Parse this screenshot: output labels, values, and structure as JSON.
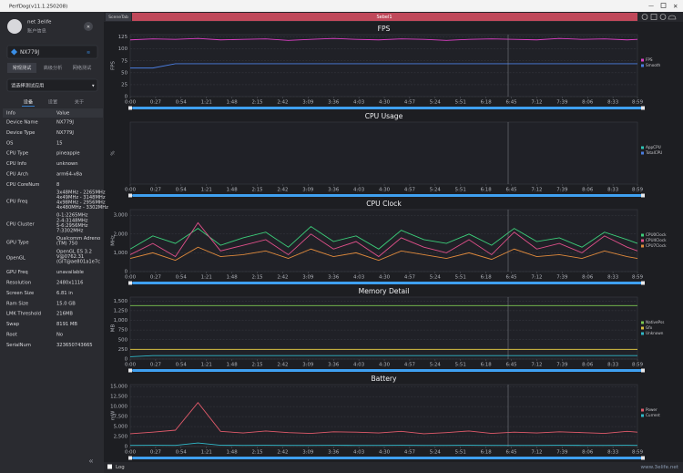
{
  "app": {
    "title": "PerfDog(v11.1.250208)"
  },
  "sidebar": {
    "user": "net 3elife",
    "account": "账户信息",
    "device": "NX779J",
    "tabs": [
      "常规测试",
      "高级分析",
      "网络测试"
    ],
    "app_select": "请选择测试应用",
    "sub_tabs": [
      "设备",
      "设置",
      "关于"
    ],
    "info_header": [
      "Info",
      "Value"
    ],
    "info_rows": [
      {
        "label": "Device Name",
        "value": [
          "NX779J"
        ]
      },
      {
        "label": "Device Type",
        "value": [
          "NX779J"
        ]
      },
      {
        "label": "OS",
        "value": [
          "15"
        ]
      },
      {
        "label": "CPU Type",
        "value": [
          "pineapple"
        ]
      },
      {
        "label": "CPU Info",
        "value": [
          "unknown"
        ]
      },
      {
        "label": "CPU Arch",
        "value": [
          "arm64-v8a"
        ]
      },
      {
        "label": "CPU CoreNum",
        "value": [
          "8"
        ]
      },
      {
        "label": "CPU Freq",
        "value": [
          "3x48MHz - 2265MHz",
          "4x49MHz - 3148MHz",
          "4x98MHz - 2956MHz",
          "4x480MHz - 3302MHz"
        ]
      },
      {
        "label": "CPU Cluster",
        "value": [
          "0-1:2265MHz",
          "2-4:3148MHz",
          "5-6:2956MHz",
          "7:3302MHz"
        ]
      },
      {
        "label": "GPU Type",
        "value": [
          "Qualcomm Adreno",
          "(TM) 750"
        ]
      },
      {
        "label": "OpenGL",
        "value": [
          "OpenGL ES 3.2",
          "V@0762.31",
          "(GIT@ae801a1e7c"
        ]
      },
      {
        "label": "GPU Freq",
        "value": [
          "unavailable"
        ]
      },
      {
        "label": "Resolution",
        "value": [
          "2480x1116"
        ]
      },
      {
        "label": "Screen Size",
        "value": [
          "6.81 in"
        ]
      },
      {
        "label": "Ram Size",
        "value": [
          "15.0 GB"
        ]
      },
      {
        "label": "LMK Threshold",
        "value": [
          "216MB"
        ]
      },
      {
        "label": "Swap",
        "value": [
          "8191 MB"
        ]
      },
      {
        "label": "Root",
        "value": [
          "No"
        ]
      },
      {
        "label": "SerialNum",
        "value": [
          "323650743665"
        ]
      }
    ]
  },
  "toolbar": {
    "scene_tab": "SceneTab",
    "label": "Sebel1"
  },
  "charts": [
    {
      "type": "line",
      "title": "FPS",
      "ylabel": "FPS",
      "grid": true,
      "xlim": [
        0,
        539
      ],
      "ylim": [
        0,
        130
      ],
      "xticks": [
        {
          "value": 0,
          "label": "0:00"
        },
        {
          "value": 27,
          "label": "0:27"
        },
        {
          "value": 54,
          "label": "0:54"
        },
        {
          "value": 81,
          "label": "1:21"
        },
        {
          "value": 108,
          "label": "1:48"
        },
        {
          "value": 135,
          "label": "2:15"
        },
        {
          "value": 162,
          "label": "2:42"
        },
        {
          "value": 189,
          "label": "3:09"
        },
        {
          "value": 216,
          "label": "3:36"
        },
        {
          "value": 243,
          "label": "4:03"
        },
        {
          "value": 270,
          "label": "4:30"
        },
        {
          "value": 297,
          "label": "4:57"
        },
        {
          "value": 324,
          "label": "5:24"
        },
        {
          "value": 351,
          "label": "5:51"
        },
        {
          "value": 378,
          "label": "6:18"
        },
        {
          "value": 405,
          "label": "6:45"
        },
        {
          "value": 432,
          "label": "7:12"
        },
        {
          "value": 459,
          "label": "7:39"
        },
        {
          "value": 486,
          "label": "8:06"
        },
        {
          "value": 513,
          "label": "8:33"
        },
        {
          "value": 539,
          "label": "8:59"
        }
      ],
      "yticks": [
        0,
        25,
        50,
        75,
        100,
        125
      ],
      "x": [
        0,
        24,
        48,
        72,
        96,
        120,
        144,
        168,
        192,
        216,
        240,
        264,
        288,
        312,
        336,
        360,
        384,
        408,
        432,
        456,
        480,
        504,
        528,
        539
      ],
      "series": [
        {
          "name": "FPS",
          "color": "#e040c8",
          "values": [
            119,
            121,
            120,
            122,
            119,
            120,
            121,
            118,
            120,
            122,
            120,
            119,
            121,
            120,
            118,
            120,
            121,
            120,
            119,
            122,
            120,
            121,
            119,
            120
          ]
        },
        {
          "name": "Smooth",
          "color": "#4a7de0",
          "values": [
            60,
            60,
            69,
            69,
            69,
            69,
            69,
            69,
            69,
            69,
            69,
            69,
            69,
            69,
            69,
            69,
            69,
            69,
            69,
            69,
            69,
            69,
            69,
            69
          ]
        }
      ]
    },
    {
      "type": "line",
      "title": "CPU Usage",
      "ylabel": "%",
      "grid": false,
      "xlim": [
        0,
        539
      ],
      "xticks": [
        {
          "value": 0,
          "label": "0:00"
        },
        {
          "value": 27,
          "label": "0:27"
        },
        {
          "value": 54,
          "label": "0:54"
        },
        {
          "value": 81,
          "label": "1:21"
        },
        {
          "value": 108,
          "label": "1:48"
        },
        {
          "value": 135,
          "label": "2:15"
        },
        {
          "value": 162,
          "label": "2:42"
        },
        {
          "value": 189,
          "label": "3:09"
        },
        {
          "value": 216,
          "label": "3:36"
        },
        {
          "value": 243,
          "label": "4:03"
        },
        {
          "value": 270,
          "label": "4:30"
        },
        {
          "value": 297,
          "label": "4:57"
        },
        {
          "value": 324,
          "label": "5:24"
        },
        {
          "value": 351,
          "label": "5:51"
        },
        {
          "value": 378,
          "label": "6:18"
        },
        {
          "value": 405,
          "label": "6:45"
        },
        {
          "value": 432,
          "label": "7:12"
        },
        {
          "value": 459,
          "label": "7:39"
        },
        {
          "value": 486,
          "label": "8:06"
        },
        {
          "value": 513,
          "label": "8:33"
        },
        {
          "value": 539,
          "label": "8:59"
        }
      ],
      "series": [
        {
          "name": "AppCPU",
          "color": "#2ec4b6",
          "values": []
        },
        {
          "name": "TotalCPU",
          "color": "#4a7de0",
          "values": []
        }
      ]
    },
    {
      "type": "line",
      "title": "CPU Clock",
      "ylabel": "MHz",
      "grid": true,
      "xlim": [
        0,
        539
      ],
      "ylim": [
        0,
        3300
      ],
      "xticks": [
        {
          "value": 0,
          "label": "0:00"
        },
        {
          "value": 27,
          "label": "0:27"
        },
        {
          "value": 54,
          "label": "0:54"
        },
        {
          "value": 81,
          "label": "1:21"
        },
        {
          "value": 108,
          "label": "1:48"
        },
        {
          "value": 135,
          "label": "2:15"
        },
        {
          "value": 162,
          "label": "2:42"
        },
        {
          "value": 189,
          "label": "3:09"
        },
        {
          "value": 216,
          "label": "3:36"
        },
        {
          "value": 243,
          "label": "4:03"
        },
        {
          "value": 270,
          "label": "4:30"
        },
        {
          "value": 297,
          "label": "4:57"
        },
        {
          "value": 324,
          "label": "5:24"
        },
        {
          "value": 351,
          "label": "5:51"
        },
        {
          "value": 378,
          "label": "6:18"
        },
        {
          "value": 405,
          "label": "6:45"
        },
        {
          "value": 432,
          "label": "7:12"
        },
        {
          "value": 459,
          "label": "7:39"
        },
        {
          "value": 486,
          "label": "8:06"
        },
        {
          "value": 513,
          "label": "8:33"
        },
        {
          "value": 539,
          "label": "8:59"
        }
      ],
      "yticks": [
        0,
        {
          "value": 1000,
          "label": "1,000"
        },
        {
          "value": 2000,
          "label": "2,000"
        },
        {
          "value": 3000,
          "label": "3,000"
        }
      ],
      "x": [
        0,
        24,
        48,
        72,
        96,
        120,
        144,
        168,
        192,
        216,
        240,
        264,
        288,
        312,
        336,
        360,
        384,
        408,
        432,
        456,
        480,
        504,
        528,
        539
      ],
      "series": [
        {
          "name": "CPU0Clock",
          "color": "#3ccf7a",
          "values": [
            1200,
            1900,
            1500,
            2300,
            1400,
            1800,
            2100,
            1300,
            2400,
            1600,
            1900,
            1200,
            2200,
            1700,
            1500,
            2000,
            1400,
            2300,
            1600,
            1800,
            1300,
            2100,
            1700,
            1500
          ]
        },
        {
          "name": "CPU4Clock",
          "color": "#e0508a",
          "values": [
            900,
            1500,
            800,
            2600,
            1100,
            1400,
            1700,
            900,
            2000,
            1200,
            1600,
            800,
            1800,
            1300,
            1000,
            1700,
            900,
            2100,
            1200,
            1500,
            1000,
            1900,
            1300,
            1100
          ]
        },
        {
          "name": "CPU7Clock",
          "color": "#e08a3c",
          "values": [
            700,
            1000,
            600,
            1300,
            800,
            900,
            1100,
            700,
            1200,
            800,
            1000,
            600,
            1100,
            900,
            700,
            1000,
            650,
            1200,
            800,
            900,
            700,
            1100,
            800,
            700
          ]
        }
      ]
    },
    {
      "type": "line",
      "title": "Memory Detail",
      "ylabel": "MB",
      "grid": true,
      "xlim": [
        0,
        539
      ],
      "ylim": [
        0,
        1600
      ],
      "xticks": [
        {
          "value": 0,
          "label": "0:00"
        },
        {
          "value": 27,
          "label": "0:27"
        },
        {
          "value": 54,
          "label": "0:54"
        },
        {
          "value": 81,
          "label": "1:21"
        },
        {
          "value": 108,
          "label": "1:48"
        },
        {
          "value": 135,
          "label": "2:15"
        },
        {
          "value": 162,
          "label": "2:42"
        },
        {
          "value": 189,
          "label": "3:09"
        },
        {
          "value": 216,
          "label": "3:36"
        },
        {
          "value": 243,
          "label": "4:03"
        },
        {
          "value": 270,
          "label": "4:30"
        },
        {
          "value": 297,
          "label": "4:57"
        },
        {
          "value": 324,
          "label": "5:24"
        },
        {
          "value": 351,
          "label": "5:51"
        },
        {
          "value": 378,
          "label": "6:18"
        },
        {
          "value": 405,
          "label": "6:45"
        },
        {
          "value": 432,
          "label": "7:12"
        },
        {
          "value": 459,
          "label": "7:39"
        },
        {
          "value": 486,
          "label": "8:06"
        },
        {
          "value": 513,
          "label": "8:33"
        },
        {
          "value": 539,
          "label": "8:59"
        }
      ],
      "yticks": [
        0,
        250,
        500,
        750,
        {
          "value": 1000,
          "label": "1,000"
        },
        {
          "value": 1250,
          "label": "1,250"
        },
        {
          "value": 1500,
          "label": "1,500"
        }
      ],
      "x": [
        0,
        24,
        48,
        72,
        96,
        120,
        144,
        168,
        192,
        216,
        240,
        264,
        288,
        312,
        336,
        360,
        384,
        408,
        432,
        456,
        480,
        504,
        528,
        539
      ],
      "series": [
        {
          "name": "NativePss",
          "color": "#7cc850",
          "values": [
            1380,
            1380,
            1380,
            1380,
            1380,
            1380,
            1380,
            1380,
            1380,
            1380,
            1380,
            1380,
            1380,
            1380,
            1380,
            1380,
            1380,
            1380,
            1380,
            1380,
            1380,
            1380,
            1380,
            1380
          ]
        },
        {
          "name": "Gfx",
          "color": "#d8c040",
          "values": [
            250,
            250,
            250,
            250,
            250,
            250,
            250,
            250,
            250,
            250,
            250,
            250,
            250,
            250,
            250,
            250,
            250,
            250,
            250,
            250,
            250,
            250,
            250,
            250
          ]
        },
        {
          "name": "Unknown",
          "color": "#30b8c8",
          "values": [
            60,
            90,
            90,
            90,
            90,
            90,
            90,
            90,
            90,
            90,
            90,
            90,
            90,
            90,
            90,
            90,
            90,
            90,
            90,
            90,
            90,
            90,
            90,
            90
          ]
        }
      ]
    },
    {
      "type": "line",
      "title": "Battery",
      "ylabel": "mW",
      "grid": true,
      "xlim": [
        0,
        539
      ],
      "ylim": [
        0,
        15500
      ],
      "xticks": [
        {
          "value": 0,
          "label": "0:00"
        },
        {
          "value": 27,
          "label": "0:27"
        },
        {
          "value": 54,
          "label": "0:54"
        },
        {
          "value": 81,
          "label": "1:21"
        },
        {
          "value": 108,
          "label": "1:48"
        },
        {
          "value": 135,
          "label": "2:15"
        },
        {
          "value": 162,
          "label": "2:42"
        },
        {
          "value": 189,
          "label": "3:09"
        },
        {
          "value": 216,
          "label": "3:36"
        },
        {
          "value": 243,
          "label": "4:03"
        },
        {
          "value": 270,
          "label": "4:30"
        },
        {
          "value": 297,
          "label": "4:57"
        },
        {
          "value": 324,
          "label": "5:24"
        },
        {
          "value": 351,
          "label": "5:51"
        },
        {
          "value": 378,
          "label": "6:18"
        },
        {
          "value": 405,
          "label": "6:45"
        },
        {
          "value": 432,
          "label": "7:12"
        },
        {
          "value": 459,
          "label": "7:39"
        },
        {
          "value": 486,
          "label": "8:06"
        },
        {
          "value": 513,
          "label": "8:33"
        },
        {
          "value": 539,
          "label": "8:59"
        }
      ],
      "yticks": [
        0,
        {
          "value": 2500,
          "label": "2,500"
        },
        {
          "value": 5000,
          "label": "5,000"
        },
        {
          "value": 7500,
          "label": "7,500"
        },
        {
          "value": 10000,
          "label": "10,000"
        },
        {
          "value": 12500,
          "label": "12,500"
        },
        {
          "value": 15000,
          "label": "15,000"
        }
      ],
      "x": [
        0,
        24,
        48,
        72,
        96,
        120,
        144,
        168,
        192,
        216,
        240,
        264,
        288,
        312,
        336,
        360,
        384,
        408,
        432,
        456,
        480,
        504,
        528,
        539
      ],
      "series": [
        {
          "name": "Power",
          "color": "#e05a6a",
          "values": [
            3200,
            3600,
            4100,
            11000,
            3800,
            3400,
            3900,
            3500,
            3300,
            3700,
            3600,
            3400,
            3800,
            3200,
            3500,
            3900,
            3300,
            3600,
            3400,
            3700,
            3500,
            3300,
            3800,
            3600
          ]
        },
        {
          "name": "Current",
          "color": "#30b8c8",
          "values": [
            300,
            320,
            310,
            900,
            330,
            300,
            320,
            310,
            300,
            320,
            310,
            300,
            330,
            300,
            310,
            320,
            300,
            310,
            300,
            320,
            310,
            300,
            320,
            310
          ]
        }
      ]
    }
  ],
  "footer": {
    "log": "Log",
    "watermark": "www.3elife.net"
  }
}
